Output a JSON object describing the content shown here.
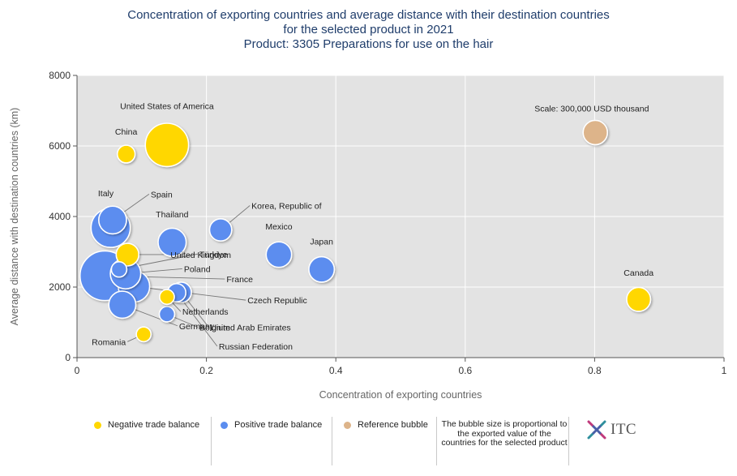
{
  "title": {
    "line1": "Concentration of exporting countries and average distance with their destination countries",
    "line2": "for the selected product in 2021",
    "line3": "Product: 3305 Preparations for use on the hair"
  },
  "colors": {
    "negative": "#FFD700",
    "positive": "#5B8DEF",
    "reference": "#DDB48A",
    "plot_bg": "#E3E3E3"
  },
  "chart_data": {
    "type": "scatter",
    "title": "Concentration of exporting countries and average distance with their destination countries for the selected product in 2021",
    "xlabel": "Concentration of exporting countries",
    "ylabel": "Average distance with destination countries (km)",
    "xlim": [
      0,
      1
    ],
    "ylim": [
      0,
      8000
    ],
    "xticks": [
      0,
      0.2,
      0.4,
      0.6,
      0.8,
      1
    ],
    "xtick_labels": [
      "0",
      "0.2",
      "0.4",
      "0.6",
      "0.8",
      "1"
    ],
    "yticks": [
      0,
      2000,
      4000,
      6000,
      8000
    ],
    "ytick_labels": [
      "0",
      "2000",
      "4000",
      "6000",
      "8000"
    ],
    "size_unit": "USD thousand (exported value, estimated)",
    "points": [
      {
        "name": "United States of America",
        "x": 0.139,
        "y": 6030,
        "value": 950000,
        "balance": "negative"
      },
      {
        "name": "China",
        "x": 0.076,
        "y": 5770,
        "value": 160000,
        "balance": "negative"
      },
      {
        "name": "Italy",
        "x": 0.052,
        "y": 3680,
        "value": 780000,
        "balance": "positive"
      },
      {
        "name": "Spain",
        "x": 0.055,
        "y": 3900,
        "value": 390000,
        "balance": "positive"
      },
      {
        "name": "Thailand",
        "x": 0.147,
        "y": 3270,
        "value": 400000,
        "balance": "positive"
      },
      {
        "name": "Korea, Republic of",
        "x": 0.222,
        "y": 3620,
        "value": 250000,
        "balance": "positive"
      },
      {
        "name": "Mexico",
        "x": 0.312,
        "y": 2920,
        "value": 330000,
        "balance": "positive"
      },
      {
        "name": "Japan",
        "x": 0.378,
        "y": 2500,
        "value": 330000,
        "balance": "positive"
      },
      {
        "name": "United Kingdom",
        "x": 0.078,
        "y": 2920,
        "value": 260000,
        "balance": "negative"
      },
      {
        "name": "Türkiye",
        "x": 0.065,
        "y": 2500,
        "value": 120000,
        "balance": "positive"
      },
      {
        "name": "Poland",
        "x": 0.075,
        "y": 2380,
        "value": 470000,
        "balance": "positive"
      },
      {
        "name": "France",
        "x": 0.043,
        "y": 2320,
        "value": 1250000,
        "balance": "positive"
      },
      {
        "name": "Czech Republic",
        "x": 0.088,
        "y": 2020,
        "value": 500000,
        "balance": "positive"
      },
      {
        "name": "Germany",
        "x": 0.07,
        "y": 1500,
        "value": 370000,
        "balance": "positive"
      },
      {
        "name": "United Arab Emirates",
        "x": 0.161,
        "y": 1850,
        "value": 210000,
        "balance": "positive"
      },
      {
        "name": "Netherlands",
        "x": 0.139,
        "y": 1720,
        "value": 110000,
        "balance": "negative"
      },
      {
        "name": "Belgium",
        "x": 0.139,
        "y": 1230,
        "value": 120000,
        "balance": "positive"
      },
      {
        "name": "Russian Federation",
        "x": 0.154,
        "y": 1840,
        "value": 170000,
        "balance": "positive"
      },
      {
        "name": "Romania",
        "x": 0.103,
        "y": 660,
        "value": 110000,
        "balance": "negative"
      },
      {
        "name": "Canada",
        "x": 0.868,
        "y": 1650,
        "value": 290000,
        "balance": "negative"
      },
      {
        "name": "Scale: 300,000 USD thousand",
        "x": 0.801,
        "y": 6380,
        "value": 300000,
        "balance": "reference"
      }
    ]
  },
  "legend": {
    "negative": "Negative trade balance",
    "positive": "Positive trade balance",
    "reference": "Reference bubble",
    "note": "The bubble size is proportional to the exported value of the countries for the selected product",
    "logo": "ITC"
  }
}
